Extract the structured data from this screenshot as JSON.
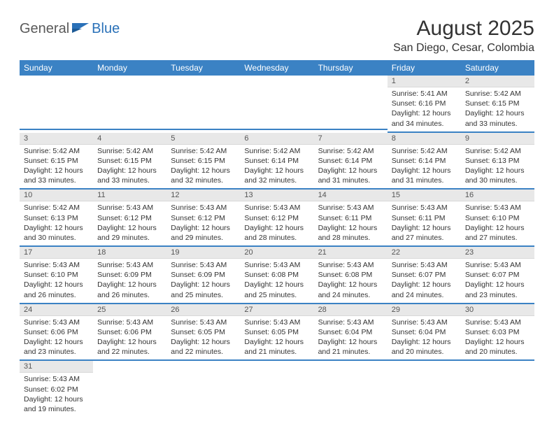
{
  "brand": {
    "text1": "General",
    "text2": "Blue"
  },
  "title": "August 2025",
  "location": "San Diego, Cesar, Colombia",
  "colors": {
    "header_bg": "#3b82c4",
    "header_fg": "#ffffff",
    "daynum_bg": "#e8e8e8",
    "row_divider": "#3b82c4",
    "text": "#333333",
    "logo_gray": "#5a5a5a",
    "logo_blue": "#2a71b8"
  },
  "weekdays": [
    "Sunday",
    "Monday",
    "Tuesday",
    "Wednesday",
    "Thursday",
    "Friday",
    "Saturday"
  ],
  "first_weekday_index": 5,
  "days": [
    {
      "n": 1,
      "sunrise": "5:41 AM",
      "sunset": "6:16 PM",
      "dl_h": 12,
      "dl_m": 34
    },
    {
      "n": 2,
      "sunrise": "5:42 AM",
      "sunset": "6:15 PM",
      "dl_h": 12,
      "dl_m": 33
    },
    {
      "n": 3,
      "sunrise": "5:42 AM",
      "sunset": "6:15 PM",
      "dl_h": 12,
      "dl_m": 33
    },
    {
      "n": 4,
      "sunrise": "5:42 AM",
      "sunset": "6:15 PM",
      "dl_h": 12,
      "dl_m": 33
    },
    {
      "n": 5,
      "sunrise": "5:42 AM",
      "sunset": "6:15 PM",
      "dl_h": 12,
      "dl_m": 32
    },
    {
      "n": 6,
      "sunrise": "5:42 AM",
      "sunset": "6:14 PM",
      "dl_h": 12,
      "dl_m": 32
    },
    {
      "n": 7,
      "sunrise": "5:42 AM",
      "sunset": "6:14 PM",
      "dl_h": 12,
      "dl_m": 31
    },
    {
      "n": 8,
      "sunrise": "5:42 AM",
      "sunset": "6:14 PM",
      "dl_h": 12,
      "dl_m": 31
    },
    {
      "n": 9,
      "sunrise": "5:42 AM",
      "sunset": "6:13 PM",
      "dl_h": 12,
      "dl_m": 30
    },
    {
      "n": 10,
      "sunrise": "5:42 AM",
      "sunset": "6:13 PM",
      "dl_h": 12,
      "dl_m": 30
    },
    {
      "n": 11,
      "sunrise": "5:43 AM",
      "sunset": "6:12 PM",
      "dl_h": 12,
      "dl_m": 29
    },
    {
      "n": 12,
      "sunrise": "5:43 AM",
      "sunset": "6:12 PM",
      "dl_h": 12,
      "dl_m": 29
    },
    {
      "n": 13,
      "sunrise": "5:43 AM",
      "sunset": "6:12 PM",
      "dl_h": 12,
      "dl_m": 28
    },
    {
      "n": 14,
      "sunrise": "5:43 AM",
      "sunset": "6:11 PM",
      "dl_h": 12,
      "dl_m": 28
    },
    {
      "n": 15,
      "sunrise": "5:43 AM",
      "sunset": "6:11 PM",
      "dl_h": 12,
      "dl_m": 27
    },
    {
      "n": 16,
      "sunrise": "5:43 AM",
      "sunset": "6:10 PM",
      "dl_h": 12,
      "dl_m": 27
    },
    {
      "n": 17,
      "sunrise": "5:43 AM",
      "sunset": "6:10 PM",
      "dl_h": 12,
      "dl_m": 26
    },
    {
      "n": 18,
      "sunrise": "5:43 AM",
      "sunset": "6:09 PM",
      "dl_h": 12,
      "dl_m": 26
    },
    {
      "n": 19,
      "sunrise": "5:43 AM",
      "sunset": "6:09 PM",
      "dl_h": 12,
      "dl_m": 25
    },
    {
      "n": 20,
      "sunrise": "5:43 AM",
      "sunset": "6:08 PM",
      "dl_h": 12,
      "dl_m": 25
    },
    {
      "n": 21,
      "sunrise": "5:43 AM",
      "sunset": "6:08 PM",
      "dl_h": 12,
      "dl_m": 24
    },
    {
      "n": 22,
      "sunrise": "5:43 AM",
      "sunset": "6:07 PM",
      "dl_h": 12,
      "dl_m": 24
    },
    {
      "n": 23,
      "sunrise": "5:43 AM",
      "sunset": "6:07 PM",
      "dl_h": 12,
      "dl_m": 23
    },
    {
      "n": 24,
      "sunrise": "5:43 AM",
      "sunset": "6:06 PM",
      "dl_h": 12,
      "dl_m": 23
    },
    {
      "n": 25,
      "sunrise": "5:43 AM",
      "sunset": "6:06 PM",
      "dl_h": 12,
      "dl_m": 22
    },
    {
      "n": 26,
      "sunrise": "5:43 AM",
      "sunset": "6:05 PM",
      "dl_h": 12,
      "dl_m": 22
    },
    {
      "n": 27,
      "sunrise": "5:43 AM",
      "sunset": "6:05 PM",
      "dl_h": 12,
      "dl_m": 21
    },
    {
      "n": 28,
      "sunrise": "5:43 AM",
      "sunset": "6:04 PM",
      "dl_h": 12,
      "dl_m": 21
    },
    {
      "n": 29,
      "sunrise": "5:43 AM",
      "sunset": "6:04 PM",
      "dl_h": 12,
      "dl_m": 20
    },
    {
      "n": 30,
      "sunrise": "5:43 AM",
      "sunset": "6:03 PM",
      "dl_h": 12,
      "dl_m": 20
    },
    {
      "n": 31,
      "sunrise": "5:43 AM",
      "sunset": "6:02 PM",
      "dl_h": 12,
      "dl_m": 19
    }
  ]
}
